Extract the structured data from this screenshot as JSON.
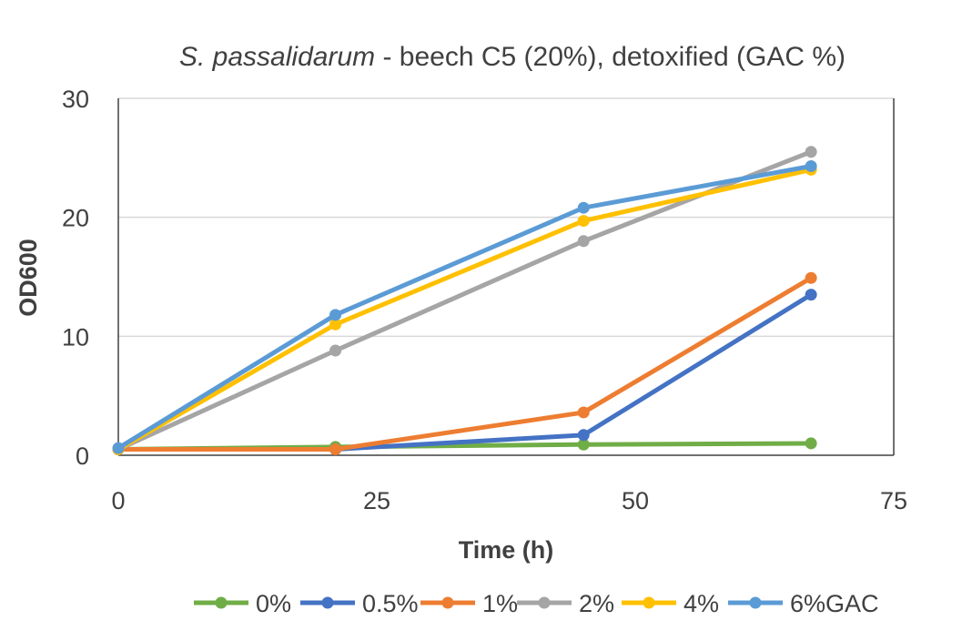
{
  "chart_data": {
    "type": "line",
    "title_italic": "S. passalidarum",
    "title_rest": " - beech C5 (20%), detoxified (GAC %)",
    "xlabel": "Time (h)",
    "ylabel": "OD600",
    "xlim": [
      0,
      75
    ],
    "ylim": [
      0,
      30
    ],
    "xticks": [
      0,
      25,
      50,
      75
    ],
    "yticks": [
      0,
      10,
      20,
      30
    ],
    "grid": true,
    "legend_position": "bottom",
    "series": [
      {
        "name": "0%",
        "color": "#70AD47",
        "x": [
          0,
          21,
          45,
          67
        ],
        "y": [
          0.5,
          0.7,
          0.9,
          1.0
        ]
      },
      {
        "name": "0.5%",
        "color": "#4472C4",
        "x": [
          0,
          21,
          45,
          67
        ],
        "y": [
          0.5,
          0.5,
          1.7,
          13.5
        ]
      },
      {
        "name": "1%",
        "color": "#ED7D31",
        "x": [
          0,
          21,
          45,
          67
        ],
        "y": [
          0.5,
          0.5,
          3.6,
          14.9
        ]
      },
      {
        "name": "2%",
        "color": "#A5A5A5",
        "x": [
          0,
          21,
          45,
          67
        ],
        "y": [
          0.5,
          8.8,
          18.0,
          25.5
        ]
      },
      {
        "name": "4%",
        "color": "#FFC000",
        "x": [
          0,
          21,
          45,
          67
        ],
        "y": [
          0.5,
          11.0,
          19.7,
          24.0
        ]
      },
      {
        "name": "6%GAC",
        "color": "#5B9BD5",
        "x": [
          0,
          21,
          45,
          67
        ],
        "y": [
          0.6,
          11.8,
          20.8,
          24.3
        ]
      }
    ]
  }
}
